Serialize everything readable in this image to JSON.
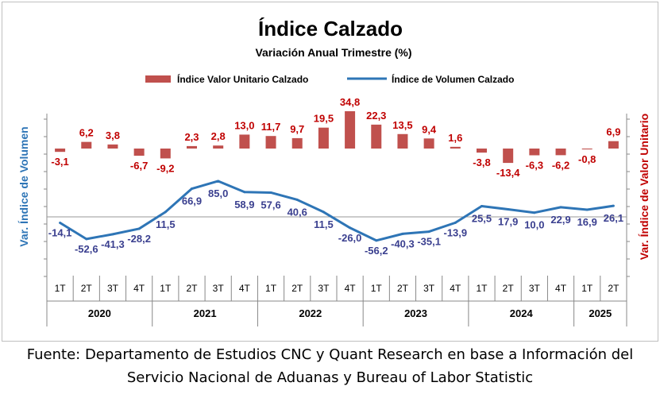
{
  "chart_data": {
    "type": "bar+line",
    "title": "Índice Calzado",
    "subtitle": "Variación Anual Trimestre  (%)",
    "legend": {
      "bar": "Índice Valor Unitario Calzado",
      "line": "Índice de Volumen Calzado",
      "placement": "top-center"
    },
    "ylabel_left": "Var. Índice de Volumen",
    "ylabel_right": "Var. Índice de Valor Unitario",
    "quarters": [
      "1T",
      "2T",
      "3T",
      "4T",
      "1T",
      "2T",
      "3T",
      "4T",
      "1T",
      "2T",
      "3T",
      "4T",
      "1T",
      "2T",
      "3T",
      "4T",
      "1T",
      "2T",
      "3T",
      "4T",
      "1T",
      "2T"
    ],
    "years": [
      {
        "label": "2020",
        "count": 4
      },
      {
        "label": "2021",
        "count": 4
      },
      {
        "label": "2022",
        "count": 4
      },
      {
        "label": "2023",
        "count": 4
      },
      {
        "label": "2024",
        "count": 4
      },
      {
        "label": "2025",
        "count": 2
      }
    ],
    "series": [
      {
        "name": "Índice Valor Unitario Calzado",
        "kind": "bar",
        "color": "#c0504d",
        "label_color": "#c00000",
        "values": [
          -3.1,
          6.2,
          3.8,
          -6.7,
          -9.2,
          2.3,
          2.8,
          13.0,
          11.7,
          9.7,
          19.5,
          34.8,
          22.3,
          13.5,
          9.4,
          1.6,
          -3.8,
          -13.4,
          -6.3,
          -6.2,
          -0.8,
          6.9
        ],
        "labels": [
          "-3,1",
          "6,2",
          "3,8",
          "-6,7",
          "-9,2",
          "2,3",
          "2,8",
          "13,0",
          "11,7",
          "9,7",
          "19,5",
          "34,8",
          "22,3",
          "13,5",
          "9,4",
          "1,6",
          "-3,8",
          "-13,4",
          "-6,3",
          "-6,2",
          "-0,8",
          "6,9"
        ]
      },
      {
        "name": "Índice de Volumen Calzado",
        "kind": "line",
        "color": "#2e75b6",
        "label_color": "#3a3f8f",
        "values": [
          -14.1,
          -52.6,
          -41.3,
          -28.2,
          11.5,
          66.9,
          85.0,
          58.9,
          57.6,
          40.6,
          11.5,
          -26.0,
          -56.2,
          -40.3,
          -35.1,
          -13.9,
          25.5,
          17.9,
          10.0,
          22.9,
          16.9,
          26.1
        ],
        "labels": [
          "-14,1",
          "-52,6",
          "-41,3",
          "-28,2",
          "11,5",
          "66,9",
          "85,0",
          "58,9",
          "57,6",
          "40,6",
          "11,5",
          "-26,0",
          "-56,2",
          "-40,3",
          "-35,1",
          "-13,9",
          "25,5",
          "17,9",
          "10,0",
          "22,9",
          "16,9",
          "26,1"
        ]
      }
    ]
  },
  "footer": {
    "line1": "Fuente: Departamento de Estudios CNC y Quant Research en base a Información del",
    "line2": "Servicio Nacional de Aduanas y Bureau of Labor Statistic"
  }
}
